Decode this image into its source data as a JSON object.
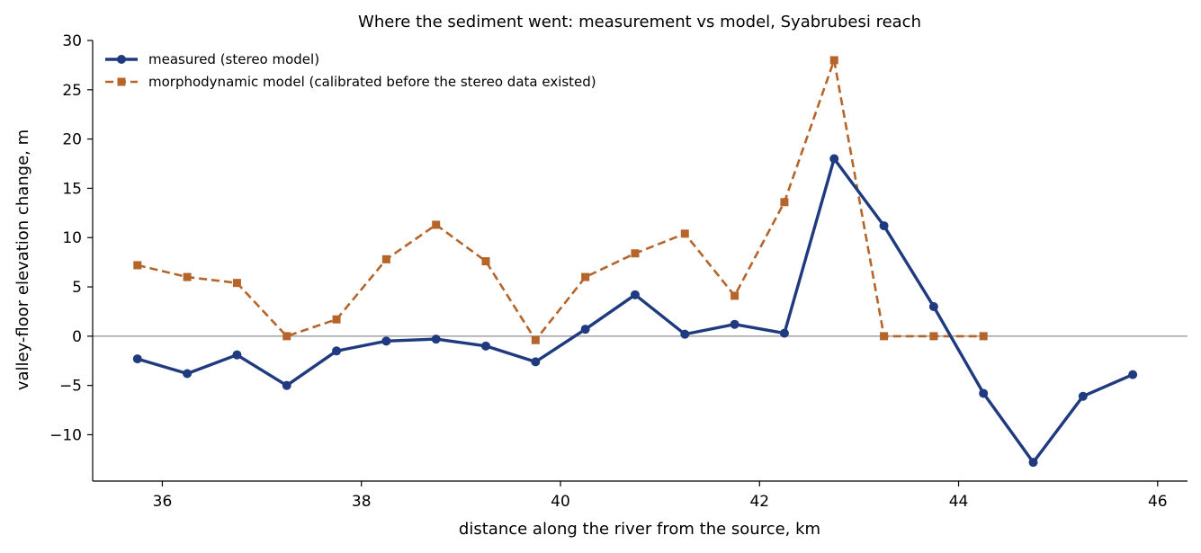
{
  "chart_data": {
    "type": "line",
    "title": "Where the sediment went: measurement vs model, Syabrubesi reach",
    "xlabel": "distance along the river from the source, km",
    "ylabel": "valley-floor elevation change, m",
    "xlim": [
      35.3,
      46.3
    ],
    "ylim": [
      -14.7,
      30
    ],
    "xticks": [
      36,
      38,
      40,
      42,
      44,
      46
    ],
    "yticks": [
      -10,
      -5,
      0,
      5,
      10,
      15,
      20,
      25,
      30
    ],
    "grid": false,
    "zero_line": true,
    "legend_position": "top-left",
    "series": [
      {
        "name": "measured (stereo model)",
        "style": "solid",
        "marker": "circle",
        "color": "#1f3a7f",
        "x": [
          35.75,
          36.25,
          36.75,
          37.25,
          37.75,
          38.25,
          38.75,
          39.25,
          39.75,
          40.25,
          40.75,
          41.25,
          41.75,
          42.25,
          42.75,
          43.25,
          43.75,
          44.25,
          44.75,
          45.25,
          45.75
        ],
        "y": [
          -2.3,
          -3.8,
          -1.9,
          -5.0,
          -1.5,
          -0.5,
          -0.3,
          -1.0,
          -2.6,
          0.7,
          4.2,
          0.2,
          1.2,
          0.3,
          18.0,
          11.2,
          3.0,
          -5.8,
          -12.8,
          -6.1,
          -3.9
        ]
      },
      {
        "name": "morphodynamic model (calibrated before the stereo data existed)",
        "style": "dashed",
        "marker": "square",
        "color": "#b5652a",
        "x": [
          35.75,
          36.25,
          36.75,
          37.25,
          37.75,
          38.25,
          38.75,
          39.25,
          39.75,
          40.25,
          40.75,
          41.25,
          41.75,
          42.25,
          42.75,
          43.25,
          43.75,
          44.25
        ],
        "y": [
          7.2,
          6.0,
          5.4,
          0.0,
          1.7,
          7.8,
          11.3,
          7.6,
          -0.4,
          6.0,
          8.4,
          10.4,
          4.1,
          13.6,
          28.0,
          0.0,
          0.0,
          0.0
        ]
      }
    ]
  }
}
